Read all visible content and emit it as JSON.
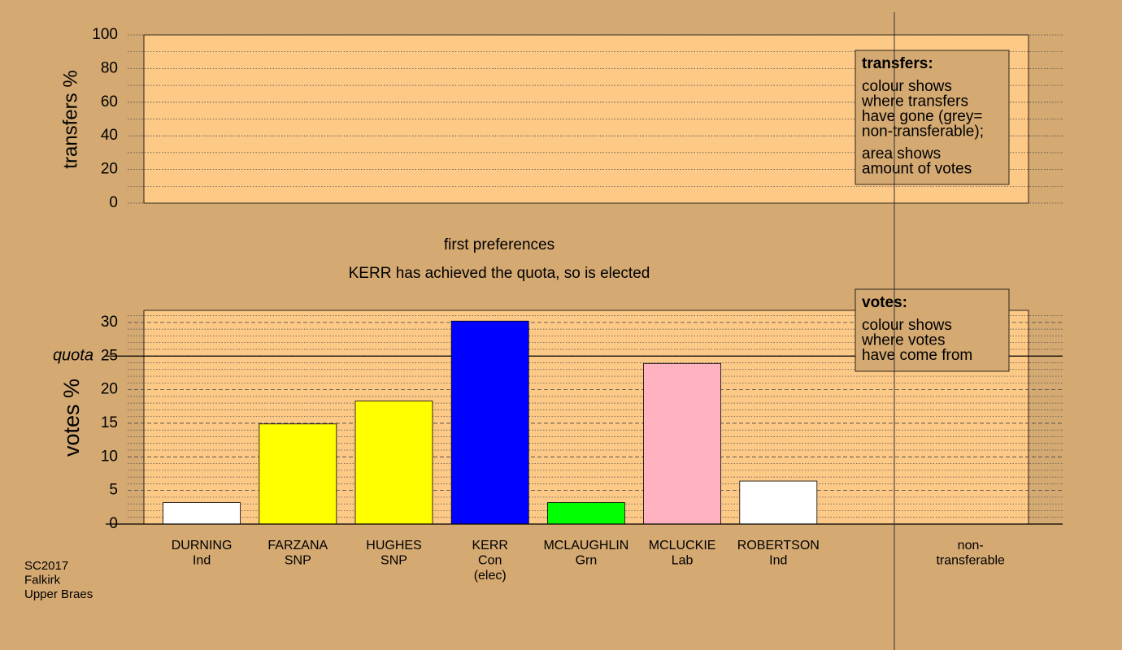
{
  "chart_data": [
    {
      "type": "bar",
      "ylabel": "transfers %",
      "categories": [],
      "values": [],
      "ylim": [
        0,
        100
      ],
      "yticks": [
        0,
        20,
        40,
        60,
        80,
        100
      ],
      "minor_yticks": [
        10,
        30,
        50,
        70,
        90
      ],
      "legend": {
        "title": "transfers:",
        "paragraphs": [
          [
            "colour shows",
            "where transfers",
            "have gone (grey=",
            "non-transferable);"
          ],
          [
            "area shows",
            "amount of votes"
          ]
        ]
      }
    },
    {
      "type": "bar",
      "title": "first preferences",
      "subtitle": "KERR has achieved the quota, so is elected",
      "ylabel": "votes %",
      "categories": [
        [
          "DURNING",
          "Ind"
        ],
        [
          "FARZANA",
          "SNP"
        ],
        [
          "HUGHES",
          "SNP"
        ],
        [
          "KERR",
          "Con",
          "(elec)"
        ],
        [
          "MCLAUGHLIN",
          "Grn"
        ],
        [
          "MCLUCKIE",
          "Lab"
        ],
        [
          "ROBERTSON",
          "Ind"
        ]
      ],
      "values": [
        3.2,
        14.9,
        18.3,
        30.2,
        3.2,
        23.9,
        6.4
      ],
      "colors": [
        "#ffffff",
        "#ffff00",
        "#ffff00",
        "#0000ff",
        "#00ff00",
        "#ffb3c1",
        "#ffffff"
      ],
      "nontransferable": [
        "non-",
        "transferable"
      ],
      "ylim": [
        0,
        31.8
      ],
      "yticks": [
        0,
        5,
        10,
        15,
        20,
        25,
        30
      ],
      "minor_yticks": [
        1,
        2,
        3,
        4,
        6,
        7,
        8,
        9,
        11,
        12,
        13,
        14,
        16,
        17,
        18,
        19,
        21,
        22,
        23,
        24,
        26,
        27,
        28,
        29,
        31
      ],
      "quota": {
        "label": "quota",
        "value": 25
      },
      "legend": {
        "title": "votes:",
        "paragraphs": [
          [
            "colour shows",
            "where votes",
            "have come from"
          ]
        ]
      }
    }
  ],
  "footer": [
    "SC2017",
    "Falkirk",
    "Upper Braes"
  ]
}
